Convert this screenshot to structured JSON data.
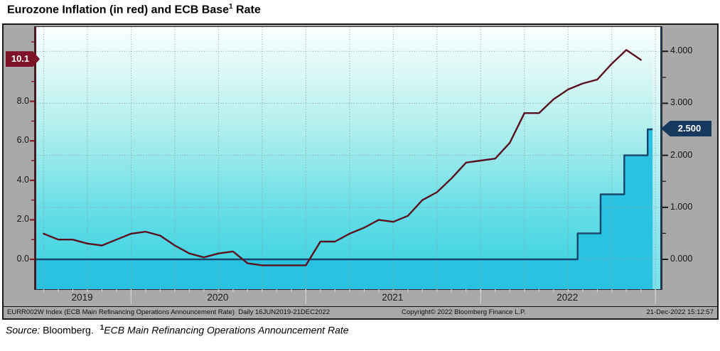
{
  "title": {
    "prefix": "Eurozone Inflation (in red) and ECB Base",
    "superscript": "1",
    "suffix": " Rate"
  },
  "caption": {
    "source_label": "Source:",
    "source_value": " Bloomberg.",
    "superscript": "1",
    "note": "ECB Main Refinancing Operations Announcement Rate"
  },
  "footer": {
    "left": "EURR002W Index (ECB Main Refinancing Operations Announcement Rate)  Daily 16JUN2019-21DEC2022",
    "center": "Copyright© 2022 Bloomberg Finance L.P.",
    "right": "21-Dec-2022 15:12:57"
  },
  "colors": {
    "frame_gray": "#a9a9a9",
    "plot_gradient_top": "#ffffff",
    "plot_gradient_bottom": "#38d0e0",
    "inflation_line": "#5a0f1f",
    "rate_line": "#17466b",
    "rate_fill": "#2bc2e1",
    "left_badge_bg": "#7d1228",
    "right_badge_bg": "#16395d",
    "gridline": "#8a9a9c",
    "no_data_band": "rgba(255,255,255,0.32)"
  },
  "chart_data": {
    "type": "line",
    "title": "Eurozone Inflation (in red) and ECB Base¹ Rate",
    "x_range": [
      "2019-06-13",
      "2023-01-14"
    ],
    "x_year_labels": [
      "2019",
      "2020",
      "2021",
      "2022"
    ],
    "grid": {
      "horizontal_right_axis_values": [
        0,
        1,
        2,
        3,
        4
      ],
      "vertical_quarterly_start": "2019-07-01",
      "vertical_step_months": 3
    },
    "left_axis": {
      "tick_labels": [
        "8.0",
        "6.0",
        "4.0",
        "2.0",
        "0.0"
      ],
      "tick_values": [
        8,
        6,
        4,
        2,
        0
      ],
      "minor_tick_values": [
        11,
        9,
        7,
        5,
        3,
        1
      ],
      "range": [
        -1.51,
        11.76
      ],
      "badge_text": "10.1"
    },
    "right_axis": {
      "tick_labels": [
        "4.000",
        "3.000",
        "2.000",
        "1.000",
        "0.000"
      ],
      "tick_values": [
        4,
        3,
        2,
        1,
        0
      ],
      "minor_tick_values": [
        3.5,
        1.5,
        0.5
      ],
      "range": [
        -0.574,
        4.467
      ],
      "badge_text": "2.500",
      "badge_value": 2.5
    },
    "series": [
      {
        "name": "Eurozone Inflation (YoY %)",
        "axis": "left",
        "type": "line",
        "months": [
          "2019-06",
          "2019-07",
          "2019-08",
          "2019-09",
          "2019-10",
          "2019-11",
          "2019-12",
          "2020-01",
          "2020-02",
          "2020-03",
          "2020-04",
          "2020-05",
          "2020-06",
          "2020-07",
          "2020-08",
          "2020-09",
          "2020-10",
          "2020-11",
          "2020-12",
          "2021-01",
          "2021-02",
          "2021-03",
          "2021-04",
          "2021-05",
          "2021-06",
          "2021-07",
          "2021-08",
          "2021-09",
          "2021-10",
          "2021-11",
          "2021-12",
          "2022-01",
          "2022-02",
          "2022-03",
          "2022-04",
          "2022-05",
          "2022-06",
          "2022-07",
          "2022-08",
          "2022-09",
          "2022-10",
          "2022-11"
        ],
        "values": [
          1.3,
          1.0,
          1.0,
          0.8,
          0.7,
          1.0,
          1.3,
          1.4,
          1.2,
          0.7,
          0.3,
          0.1,
          0.3,
          0.4,
          -0.2,
          -0.3,
          -0.3,
          -0.3,
          -0.3,
          0.9,
          0.9,
          1.3,
          1.6,
          2.0,
          1.9,
          2.2,
          3.0,
          3.4,
          4.1,
          4.9,
          5.0,
          5.1,
          5.9,
          7.4,
          7.4,
          8.1,
          8.6,
          8.9,
          9.1,
          9.9,
          10.6,
          10.1
        ],
        "last_value": 10.1
      },
      {
        "name": "ECB Main Refinancing Operations Announcement Rate (%)",
        "axis": "right",
        "type": "step-area",
        "steps": [
          {
            "date": "2019-06-16",
            "value": 0.0
          },
          {
            "date": "2022-07-21",
            "value": 0.5
          },
          {
            "date": "2022-09-08",
            "value": 1.25
          },
          {
            "date": "2022-10-27",
            "value": 2.0
          },
          {
            "date": "2022-12-15",
            "value": 2.5
          }
        ],
        "end_date": "2022-12-21",
        "last_value": 2.5
      }
    ]
  }
}
